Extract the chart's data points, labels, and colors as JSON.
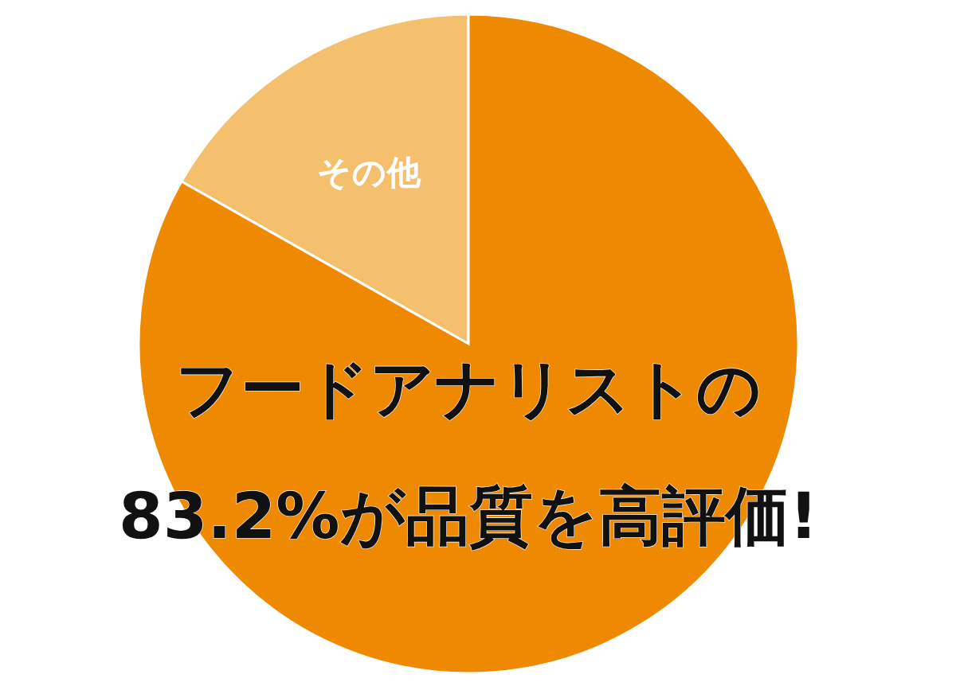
{
  "chart_data": {
    "type": "pie",
    "categories": [
      null,
      "その他"
    ],
    "values": [
      83.2,
      16.8
    ],
    "colors": [
      "#ef8a00",
      "#f5c06e"
    ],
    "annotations": [
      "フードアナリストの",
      "83.2%が品質を高評価!"
    ]
  }
}
